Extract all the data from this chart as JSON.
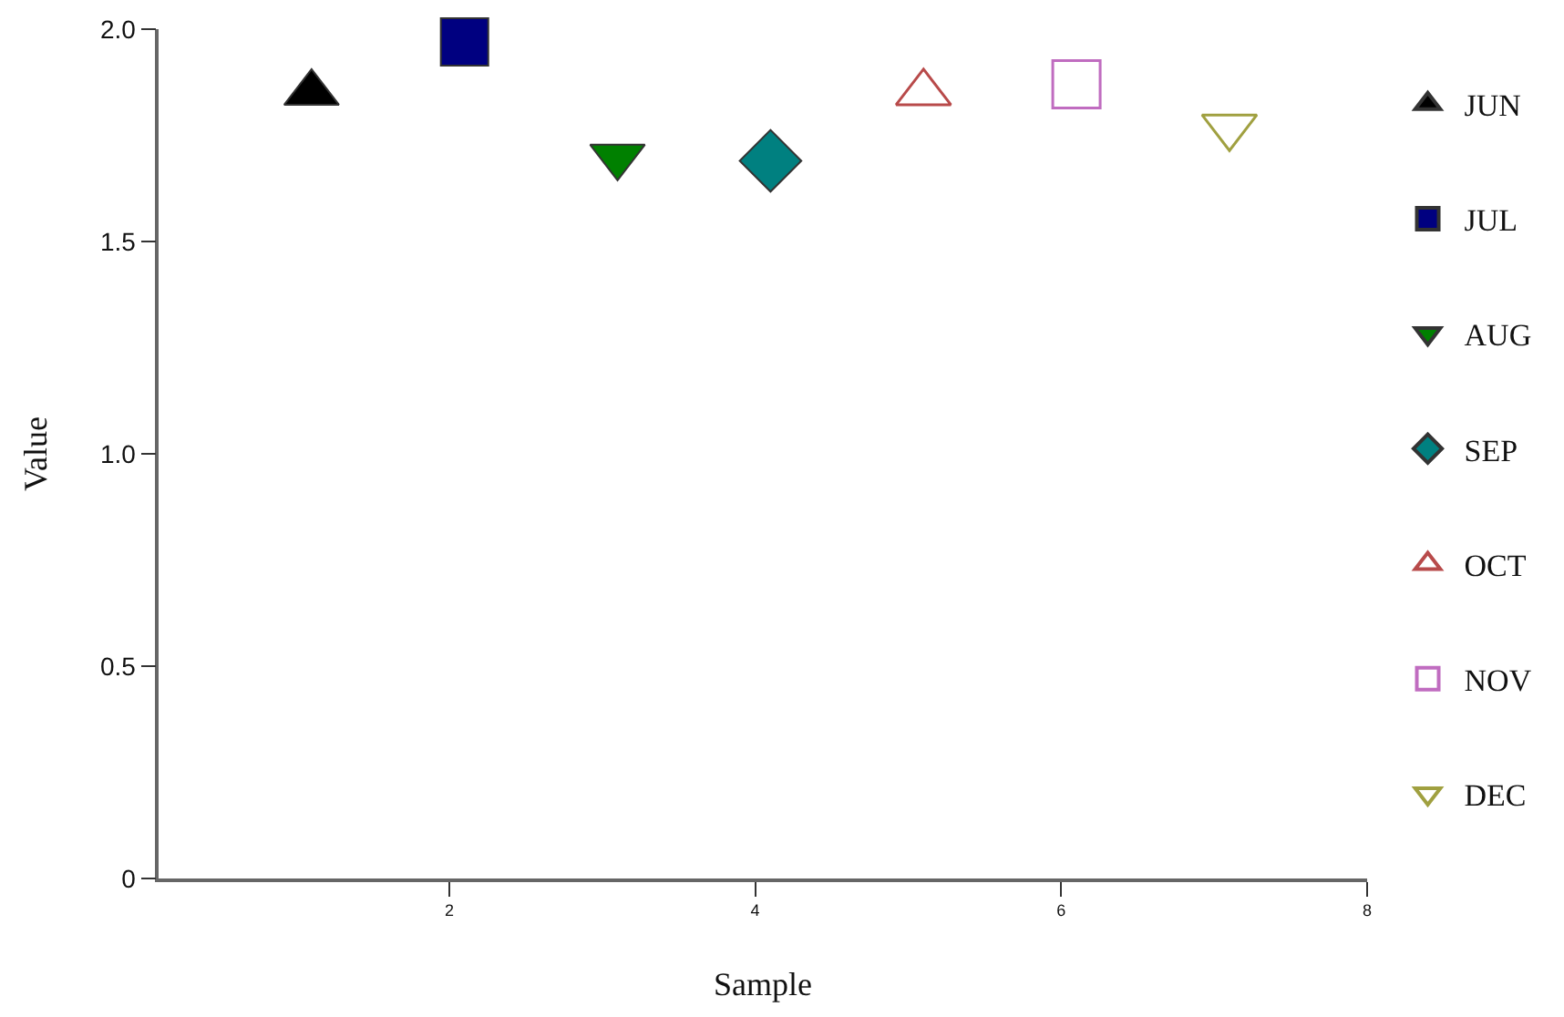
{
  "chart_data": {
    "type": "scatter",
    "xlabel": "Sample",
    "ylabel": "Value",
    "xlim": [
      0.1,
      8
    ],
    "xticks": [
      2,
      4,
      6,
      8
    ],
    "ylim": [
      0,
      2.0
    ],
    "yticks": [
      {
        "value": 0,
        "label": "0"
      },
      {
        "value": 0.5,
        "label": "0.5"
      },
      {
        "value": 1.0,
        "label": "1.0"
      },
      {
        "value": 1.5,
        "label": "1.5"
      },
      {
        "value": 2.0,
        "label": "2.0"
      }
    ],
    "grid": false,
    "legend": "right",
    "series": [
      {
        "name": "JUN",
        "color": "#000000",
        "marker": "triangle",
        "x": [
          1.1
        ],
        "values": [
          1.85
        ]
      },
      {
        "name": "JUL",
        "color": "#000080",
        "marker": "square",
        "x": [
          2.1
        ],
        "values": [
          1.97
        ]
      },
      {
        "name": "AUG",
        "color": "#008000",
        "marker": "triangle-down",
        "x": [
          3.1
        ],
        "values": [
          1.7
        ]
      },
      {
        "name": "SEP",
        "color": "#008080",
        "marker": "diamond",
        "x": [
          4.1
        ],
        "values": [
          1.69
        ]
      },
      {
        "name": "OCT",
        "color": "#b84a4a",
        "marker": "triangle-open",
        "x": [
          5.1
        ],
        "values": [
          1.85
        ]
      },
      {
        "name": "NOV",
        "color": "#c06cc0",
        "marker": "square-open",
        "x": [
          6.1
        ],
        "values": [
          1.87
        ]
      },
      {
        "name": "DEC",
        "color": "#a0a040",
        "marker": "triangle-down-open",
        "x": [
          7.1
        ],
        "values": [
          1.77
        ]
      }
    ]
  }
}
